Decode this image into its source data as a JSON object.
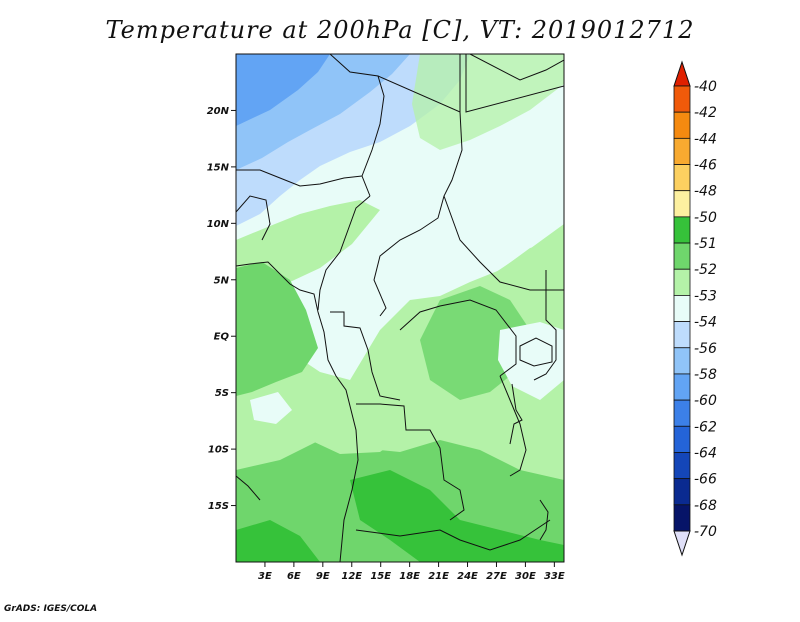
{
  "title": "Temperature at 200hPa [C], VT: 2019012712",
  "credit": "GrADS: IGES/COLA",
  "map": {
    "lat_range": [
      -20,
      25
    ],
    "lon_range": [
      0,
      34
    ],
    "lat_ticks": [
      {
        "value": 20,
        "label": "20N"
      },
      {
        "value": 15,
        "label": "15N"
      },
      {
        "value": 10,
        "label": "10N"
      },
      {
        "value": 5,
        "label": "5N"
      },
      {
        "value": 0,
        "label": "EQ"
      },
      {
        "value": -5,
        "label": "5S"
      },
      {
        "value": -10,
        "label": "10S"
      },
      {
        "value": -15,
        "label": "15S"
      }
    ],
    "lon_ticks": [
      {
        "value": 3,
        "label": "3E"
      },
      {
        "value": 6,
        "label": "6E"
      },
      {
        "value": 9,
        "label": "9E"
      },
      {
        "value": 12,
        "label": "12E"
      },
      {
        "value": 15,
        "label": "15E"
      },
      {
        "value": 18,
        "label": "18E"
      },
      {
        "value": 21,
        "label": "21E"
      },
      {
        "value": 24,
        "label": "24E"
      },
      {
        "value": 27,
        "label": "27E"
      },
      {
        "value": 30,
        "label": "30E"
      },
      {
        "value": 33,
        "label": "33E"
      }
    ]
  },
  "colorbar": {
    "top_arrow_color": "#e02000",
    "bottom_arrow_color": "#e0e0f8",
    "entries": [
      {
        "label": "-40",
        "color": "#e83010"
      },
      {
        "label": "-42",
        "color": "#f05a0a"
      },
      {
        "label": "-44",
        "color": "#f58a10"
      },
      {
        "label": "-46",
        "color": "#f8aa30"
      },
      {
        "label": "-48",
        "color": "#fcd060"
      },
      {
        "label": "-50",
        "color": "#fdf0a0"
      },
      {
        "label": "-51",
        "color": "#36c23a"
      },
      {
        "label": "-52",
        "color": "#6fd66c"
      },
      {
        "label": "-53",
        "color": "#b4f2a8"
      },
      {
        "label": "-54",
        "color": "#e8fcf8"
      },
      {
        "label": "-56",
        "color": "#bedcfc"
      },
      {
        "label": "-58",
        "color": "#90c4f8"
      },
      {
        "label": "-60",
        "color": "#62a4f4"
      },
      {
        "label": "-62",
        "color": "#3c80e8"
      },
      {
        "label": "-64",
        "color": "#2464d8"
      },
      {
        "label": "-66",
        "color": "#1446b8"
      },
      {
        "label": "-68",
        "color": "#0a2a90"
      },
      {
        "label": "-70",
        "color": "#061468"
      }
    ]
  }
}
